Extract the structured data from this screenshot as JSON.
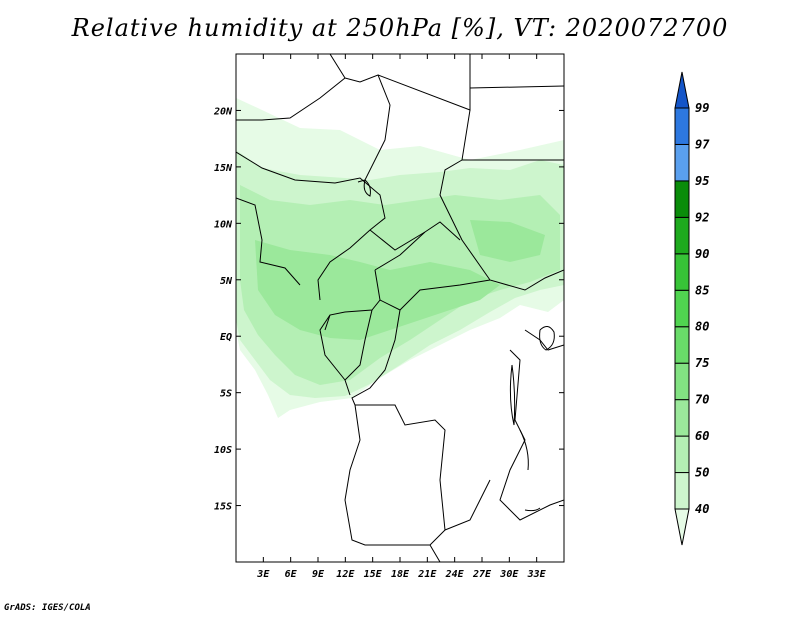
{
  "title": "Relative humidity at 250hPa [%], VT: 2020072700",
  "credit": "GrADS: IGES/COLA",
  "map": {
    "projection": "latlon",
    "lon_range": [
      0,
      36
    ],
    "lat_range": [
      -20,
      25
    ],
    "lon_ticks": [
      3,
      6,
      9,
      12,
      15,
      18,
      21,
      24,
      27,
      30,
      33
    ],
    "lon_tick_labels": [
      "3E",
      "6E",
      "9E",
      "12E",
      "15E",
      "18E",
      "21E",
      "24E",
      "27E",
      "30E",
      "33E"
    ],
    "lat_ticks": [
      20,
      15,
      10,
      5,
      0,
      -5,
      -10,
      -15
    ],
    "lat_tick_labels": [
      "20N",
      "15N",
      "10N",
      "5N",
      "EQ",
      "5S",
      "10S",
      "15S"
    ]
  },
  "colorbar": {
    "levels": [
      "40",
      "50",
      "60",
      "70",
      "75",
      "80",
      "85",
      "90",
      "92",
      "95",
      "97",
      "99"
    ],
    "colors": [
      "#e6fbe6",
      "#cdf5cd",
      "#b4efb4",
      "#9be89b",
      "#82e282",
      "#69db69",
      "#50d450",
      "#37c337",
      "#1eaa1e",
      "#0a8c0a",
      "#5aa0ef",
      "#2d78e0",
      "#1455c8"
    ]
  }
}
